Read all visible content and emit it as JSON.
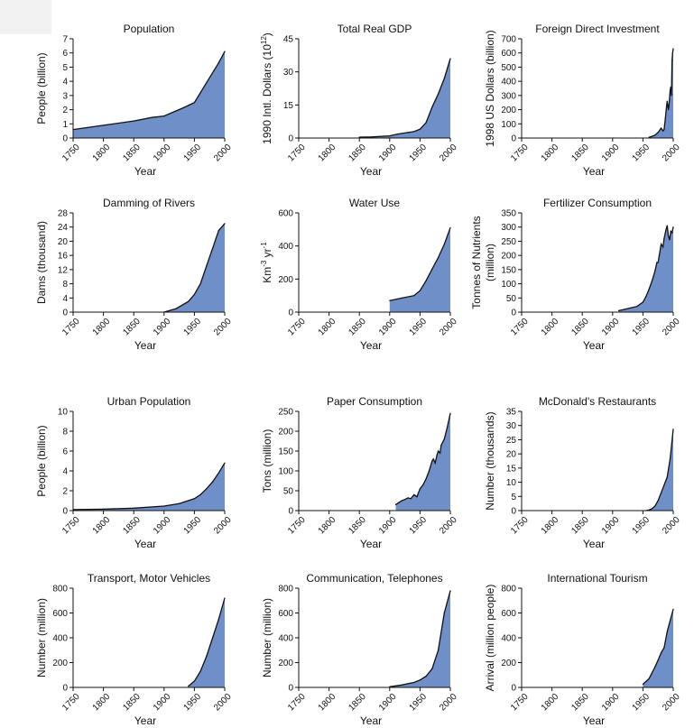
{
  "colors": {
    "fill": "#6f8fc9",
    "line": "#111111"
  },
  "chart_data": [
    {
      "type": "area",
      "title": "Population",
      "xlabel": "Year",
      "ylabel": "People (billion)",
      "xlim": [
        1750,
        2000
      ],
      "ylim": [
        0,
        7
      ],
      "xticks": [
        "1750",
        "1800",
        "1850",
        "1900",
        "1950",
        "2000"
      ],
      "yticks": [
        "0",
        "1",
        "2",
        "3",
        "4",
        "5",
        "6",
        "7"
      ],
      "series": [
        {
          "x": [
            1750,
            1800,
            1850,
            1880,
            1900,
            1930,
            1950,
            1970,
            1990,
            2000
          ],
          "values": [
            0.6,
            0.9,
            1.2,
            1.45,
            1.55,
            2.1,
            2.5,
            3.9,
            5.3,
            6.1
          ]
        }
      ]
    },
    {
      "type": "area",
      "title": "Total Real GDP",
      "xlabel": "Year",
      "ylabel": "1990 Intl. Dollars (10",
      "ylabel_sup": "12",
      "ylabel_end": ")",
      "xlim": [
        1750,
        2000
      ],
      "ylim": [
        0,
        45
      ],
      "xticks": [
        "1750",
        "1800",
        "1850",
        "1900",
        "1950",
        "2000"
      ],
      "yticks": [
        "0",
        "15",
        "30",
        "45"
      ],
      "series": [
        {
          "x": [
            1850,
            1870,
            1890,
            1900,
            1913,
            1930,
            1940,
            1950,
            1960,
            1970,
            1980,
            1990,
            2000
          ],
          "values": [
            0.4,
            0.5,
            0.8,
            1.0,
            1.8,
            2.5,
            2.9,
            4.0,
            7.0,
            14,
            20,
            27,
            36
          ]
        }
      ]
    },
    {
      "type": "area",
      "title": "Foreign Direct Investment",
      "xlabel": "Year",
      "ylabel": "1998 US Dollars (billion)",
      "xlim": [
        1750,
        2000
      ],
      "ylim": [
        0,
        700
      ],
      "xticks": [
        "1750",
        "1800",
        "1850",
        "1900",
        "1950",
        "2000"
      ],
      "yticks": [
        "0",
        "100",
        "200",
        "300",
        "400",
        "500",
        "600",
        "700"
      ],
      "series": [
        {
          "x": [
            1960,
            1970,
            1975,
            1980,
            1983,
            1985,
            1987,
            1988,
            1990,
            1992,
            1993,
            1995,
            1996,
            1997,
            1998,
            1999,
            2000
          ],
          "values": [
            5,
            20,
            40,
            70,
            50,
            60,
            140,
            180,
            260,
            200,
            230,
            340,
            360,
            300,
            550,
            600,
            630
          ]
        }
      ]
    },
    {
      "type": "area",
      "title": "Damming of Rivers",
      "xlabel": "Year",
      "ylabel": "Dams (thousand)",
      "xlim": [
        1750,
        2000
      ],
      "ylim": [
        0,
        28
      ],
      "xticks": [
        "1750",
        "1800",
        "1850",
        "1900",
        "1950",
        "2000"
      ],
      "yticks": [
        "0",
        "4",
        "8",
        "12",
        "16",
        "20",
        "24",
        "28"
      ],
      "series": [
        {
          "x": [
            1900,
            1920,
            1940,
            1950,
            1960,
            1970,
            1980,
            1990,
            2000
          ],
          "values": [
            0,
            1.0,
            3.0,
            5.0,
            8.0,
            13,
            18,
            23,
            25
          ]
        }
      ]
    },
    {
      "type": "area",
      "title": "Water Use",
      "xlabel": "Year",
      "ylabel": "Km",
      "ylabel_sup": "-3",
      "ylabel_end": " yr",
      "ylabel_sup2": "-1",
      "xlim": [
        1750,
        2000
      ],
      "ylim": [
        0,
        600
      ],
      "xticks": [
        "1750",
        "1800",
        "1850",
        "1900",
        "1950",
        "2000"
      ],
      "yticks": [
        "0",
        "200",
        "400",
        "600"
      ],
      "series": [
        {
          "x": [
            1900,
            1920,
            1940,
            1950,
            1960,
            1970,
            1980,
            1990,
            2000
          ],
          "values": [
            70,
            85,
            100,
            130,
            190,
            260,
            330,
            410,
            510
          ]
        }
      ]
    },
    {
      "type": "area",
      "title": "Fertilizer Consumption",
      "xlabel": "Year",
      "ylabel": "Tonnes of Nutrients",
      "ylabel_line2": "(million)",
      "xlim": [
        1750,
        2000
      ],
      "ylim": [
        0,
        350
      ],
      "xticks": [
        "1750",
        "1800",
        "1850",
        "1900",
        "1950",
        "2000"
      ],
      "yticks": [
        "0",
        "50",
        "100",
        "150",
        "200",
        "250",
        "300",
        "350"
      ],
      "series": [
        {
          "x": [
            1910,
            1920,
            1930,
            1940,
            1950,
            1955,
            1960,
            1965,
            1970,
            1973,
            1975,
            1977,
            1980,
            1983,
            1985,
            1988,
            1990,
            1992,
            1994,
            1996,
            1998,
            2000
          ],
          "values": [
            5,
            10,
            15,
            20,
            35,
            55,
            80,
            110,
            145,
            175,
            175,
            200,
            240,
            230,
            260,
            290,
            305,
            270,
            255,
            285,
            280,
            300
          ]
        }
      ]
    },
    {
      "type": "area",
      "title": "Urban Population",
      "xlabel": "Year",
      "ylabel": "People (billion)",
      "xlim": [
        1750,
        2000
      ],
      "ylim": [
        0,
        10
      ],
      "xticks": [
        "1750",
        "1800",
        "1850",
        "1900",
        "1950",
        "2000"
      ],
      "yticks": [
        "0",
        "2",
        "4",
        "6",
        "8",
        "10"
      ],
      "series": [
        {
          "x": [
            1750,
            1800,
            1850,
            1900,
            1925,
            1950,
            1960,
            1970,
            1980,
            1990,
            2000
          ],
          "values": [
            0.1,
            0.15,
            0.25,
            0.45,
            0.7,
            1.2,
            1.6,
            2.2,
            2.9,
            3.8,
            4.8
          ]
        }
      ]
    },
    {
      "type": "area",
      "title": "Paper Consumption",
      "xlabel": "Year",
      "ylabel": "Tons (million)",
      "xlim": [
        1750,
        2000
      ],
      "ylim": [
        0,
        250
      ],
      "xticks": [
        "1750",
        "1800",
        "1850",
        "1900",
        "1950",
        "2000"
      ],
      "yticks": [
        "0",
        "50",
        "100",
        "150",
        "200",
        "250"
      ],
      "series": [
        {
          "x": [
            1910,
            1915,
            1920,
            1925,
            1930,
            1935,
            1940,
            1945,
            1950,
            1955,
            1960,
            1965,
            1970,
            1972,
            1975,
            1978,
            1980,
            1983,
            1985,
            1990,
            1995,
            2000
          ],
          "values": [
            15,
            20,
            25,
            28,
            32,
            30,
            40,
            35,
            55,
            65,
            80,
            100,
            125,
            130,
            120,
            140,
            150,
            145,
            165,
            180,
            210,
            245
          ]
        }
      ]
    },
    {
      "type": "area",
      "title": "McDonald's Restaurants",
      "xlabel": "Year",
      "ylabel": "Number (thousands)",
      "xlim": [
        1750,
        2000
      ],
      "ylim": [
        0,
        35
      ],
      "xticks": [
        "1750",
        "1800",
        "1850",
        "1900",
        "1950",
        "2000"
      ],
      "yticks": [
        "0",
        "5",
        "10",
        "15",
        "20",
        "25",
        "30",
        "35"
      ],
      "series": [
        {
          "x": [
            1955,
            1960,
            1965,
            1970,
            1975,
            1980,
            1985,
            1990,
            1995,
            2000
          ],
          "values": [
            0,
            0.2,
            0.7,
            1.6,
            3.5,
            6.3,
            9.0,
            11.8,
            18.4,
            28.7
          ]
        }
      ]
    },
    {
      "type": "area",
      "title": "Transport, Motor Vehicles",
      "xlabel": "Year",
      "ylabel": "Number (million)",
      "xlim": [
        1750,
        2000
      ],
      "ylim": [
        0,
        800
      ],
      "xticks": [
        "1750",
        "1800",
        "1850",
        "1900",
        "1950",
        "2000"
      ],
      "yticks": [
        "0",
        "200",
        "400",
        "600",
        "800"
      ],
      "series": [
        {
          "x": [
            1940,
            1950,
            1960,
            1970,
            1980,
            1990,
            2000
          ],
          "values": [
            10,
            50,
            130,
            250,
            400,
            550,
            720
          ]
        }
      ]
    },
    {
      "type": "area",
      "title": "Communication, Telephones",
      "xlabel": "Year",
      "ylabel": "Number (million)",
      "xlim": [
        1750,
        2000
      ],
      "ylim": [
        0,
        800
      ],
      "xticks": [
        "1750",
        "1800",
        "1850",
        "1900",
        "1950",
        "2000"
      ],
      "yticks": [
        "0",
        "200",
        "400",
        "600",
        "800"
      ],
      "series": [
        {
          "x": [
            1900,
            1920,
            1940,
            1950,
            1960,
            1970,
            1980,
            1990,
            2000
          ],
          "values": [
            5,
            20,
            40,
            60,
            90,
            150,
            300,
            600,
            780
          ]
        }
      ]
    },
    {
      "type": "area",
      "title": "International Tourism",
      "xlabel": "Year",
      "ylabel": "Arrival (million people)",
      "xlim": [
        1750,
        2000
      ],
      "ylim": [
        0,
        800
      ],
      "xticks": [
        "1750",
        "1800",
        "1850",
        "1900",
        "1950",
        "2000"
      ],
      "yticks": [
        "0",
        "200",
        "400",
        "600",
        "800"
      ],
      "series": [
        {
          "x": [
            1950,
            1960,
            1970,
            1975,
            1980,
            1985,
            1990,
            1995,
            2000
          ],
          "values": [
            25,
            70,
            165,
            220,
            280,
            320,
            450,
            540,
            630
          ]
        }
      ]
    }
  ]
}
